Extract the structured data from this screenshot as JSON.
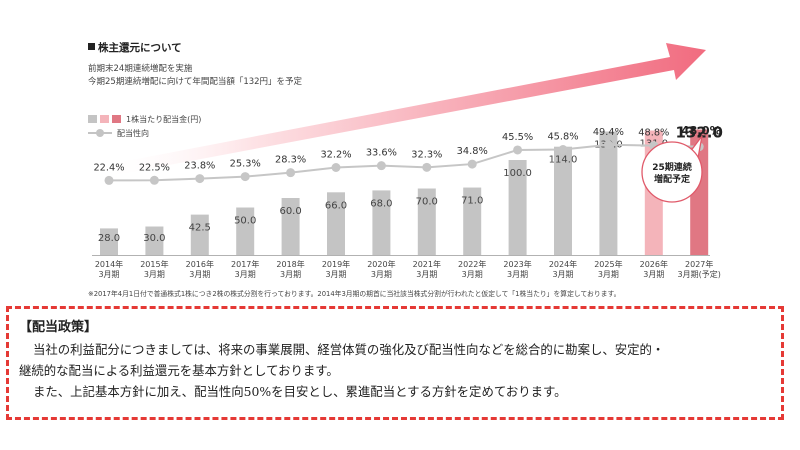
{
  "header": {
    "title": "株主還元について",
    "subtitle_1": "前期末24期連続増配を実施",
    "subtitle_2": "今期25期連続増配に向けて年間配当額「132円」を予定"
  },
  "legend": {
    "dividend_label": "1株当たり配当金(円)",
    "payout_label": "配当性向"
  },
  "chart_data": {
    "type": "bar",
    "categories": [
      "2014年\n3月期",
      "2015年\n3月期",
      "2016年\n3月期",
      "2017年\n3月期",
      "2018年\n3月期",
      "2019年\n3月期",
      "2020年\n3月期",
      "2021年\n3月期",
      "2022年\n3月期",
      "2023年\n3月期",
      "2024年\n3月期",
      "2025年\n3月期",
      "2026年\n3月期",
      "2027年\n3月期(予定)"
    ],
    "series": [
      {
        "name": "1株当たり配当金(円)",
        "values": [
          28.0,
          30.0,
          42.5,
          50.0,
          60.0,
          66.0,
          68.0,
          70.0,
          71.0,
          100.0,
          114.0,
          130.0,
          131.0,
          132.0
        ],
        "value_labels": [
          "28.0",
          "30.0",
          "42.5",
          "50.0",
          "60.0",
          "66.0",
          "68.0",
          "70.0",
          "71.0",
          "100.0",
          "114.0",
          "130.0",
          "131.0",
          "132.0"
        ]
      },
      {
        "name": "配当性向",
        "type": "line",
        "values": [
          22.4,
          22.5,
          23.8,
          25.3,
          28.3,
          32.2,
          33.6,
          32.3,
          34.8,
          45.5,
          45.8,
          49.4,
          48.8,
          48.0
        ],
        "value_labels": [
          "22.4%",
          "22.5%",
          "23.8%",
          "25.3%",
          "28.3%",
          "32.2%",
          "33.6%",
          "32.3%",
          "34.8%",
          "45.5%",
          "45.8%",
          "49.4%",
          "48.8%",
          "48.0%"
        ]
      }
    ],
    "bar_colors": {
      "actual": "#c4c4c4",
      "current": "#f4b4ba",
      "forecast": "#e07783"
    },
    "arrow_color": "#f16b7f",
    "annotation": {
      "line1": "25期連続",
      "line2": "増配予定"
    },
    "legend_placement": "top-left",
    "grid": false
  },
  "footnote": "※2017年4月1日付で普通株式1株につき2株の株式分割を行っております。2014年3月期の期首に当社該当株式分割が行われたと仮定して「1株当たり」を算定しております。",
  "policy": {
    "title": "【配当政策】",
    "line_1": "当社の利益配分につきましては、将来の事業展開、経営体質の強化及び配当性向などを総合的に勘案し、安定的・",
    "line_2": "継続的な配当による利益還元を基本方針としております。",
    "line_3": "また、上記基本方針に加え、配当性向50%を目安とし、累進配当とする方針を定めております。"
  }
}
